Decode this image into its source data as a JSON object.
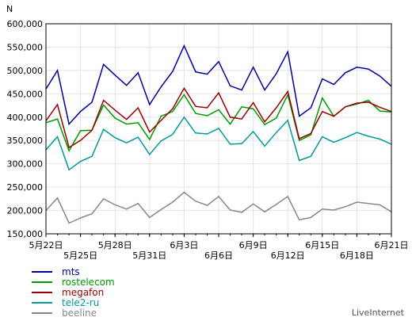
{
  "chart_data": {
    "type": "line",
    "unit_label": "N",
    "brand": "LiveInternet",
    "ylim": [
      150000,
      600000
    ],
    "y_ticks": [
      150000,
      200000,
      250000,
      300000,
      350000,
      400000,
      450000,
      500000,
      550000,
      600000
    ],
    "y_tick_labels": [
      "150,000",
      "200,000",
      "250,000",
      "300,000",
      "350,000",
      "400,000",
      "450,000",
      "500,000",
      "550,000",
      "600,000"
    ],
    "x_start_label": "5月22日",
    "x_tick_labels": [
      {
        "index": 0,
        "label": "5月22日",
        "row": 0
      },
      {
        "index": 3,
        "label": "5月25日",
        "row": 1
      },
      {
        "index": 6,
        "label": "5月28日",
        "row": 0
      },
      {
        "index": 9,
        "label": "5月31日",
        "row": 1
      },
      {
        "index": 12,
        "label": "6月3日",
        "row": 0
      },
      {
        "index": 15,
        "label": "6月6日",
        "row": 1
      },
      {
        "index": 18,
        "label": "6月9日",
        "row": 0
      },
      {
        "index": 21,
        "label": "6月12日",
        "row": 1
      },
      {
        "index": 24,
        "label": "6月15日",
        "row": 0
      },
      {
        "index": 27,
        "label": "6月18日",
        "row": 1
      },
      {
        "index": 30,
        "label": "6月21日",
        "row": 0
      }
    ],
    "grid": true,
    "legend_position": "bottom-left",
    "series": [
      {
        "name": "mts",
        "color": "#000099",
        "values": [
          460000,
          500000,
          385000,
          412000,
          432000,
          513000,
          490000,
          468000,
          495000,
          427000,
          465000,
          498000,
          553000,
          497000,
          492000,
          519000,
          467000,
          458000,
          507000,
          458000,
          493000,
          540000,
          402000,
          420000,
          482000,
          470000,
          495000,
          507000,
          503000,
          488000,
          466000
        ]
      },
      {
        "name": "rostelecom",
        "color": "#009900",
        "values": [
          388000,
          396000,
          328000,
          371000,
          372000,
          426000,
          398000,
          385000,
          388000,
          352000,
          402000,
          412000,
          448000,
          408000,
          403000,
          416000,
          385000,
          422000,
          418000,
          384000,
          398000,
          448000,
          350000,
          362000,
          441000,
          402000,
          422000,
          428000,
          436000,
          413000,
          411000
        ]
      },
      {
        "name": "megafon",
        "color": "#990000",
        "values": [
          392000,
          427000,
          335000,
          350000,
          372000,
          436000,
          415000,
          395000,
          420000,
          368000,
          393000,
          418000,
          462000,
          423000,
          420000,
          452000,
          400000,
          396000,
          431000,
          390000,
          420000,
          455000,
          354000,
          365000,
          412000,
          402000,
          422000,
          430000,
          432000,
          421000,
          412000
        ]
      },
      {
        "name": "tele2-ru",
        "color": "#009999",
        "values": [
          330000,
          358000,
          287000,
          305000,
          316000,
          374000,
          356000,
          345000,
          357000,
          320000,
          349000,
          363000,
          400000,
          366000,
          364000,
          376000,
          342000,
          343000,
          369000,
          338000,
          367000,
          393000,
          307000,
          316000,
          358000,
          346000,
          356000,
          367000,
          359000,
          353000,
          342000
        ]
      },
      {
        "name": "beeline",
        "color": "#888888",
        "values": [
          200000,
          227000,
          173000,
          184000,
          193000,
          225000,
          212000,
          203000,
          215000,
          185000,
          202000,
          218000,
          239000,
          220000,
          211000,
          230000,
          201000,
          196000,
          214000,
          197000,
          213000,
          230000,
          180000,
          185000,
          203000,
          201000,
          208000,
          218000,
          215000,
          212000,
          197000
        ]
      }
    ]
  }
}
